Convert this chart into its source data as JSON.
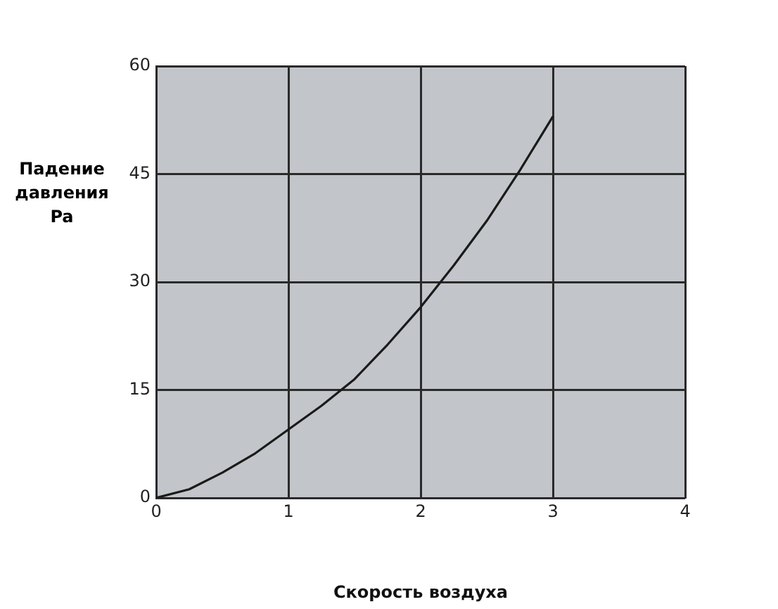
{
  "chart_data": {
    "type": "line",
    "xlabel": "Скорость воздуха",
    "ylabel": "Падение\nдавления\nPa",
    "x": [
      0,
      0.25,
      0.5,
      0.75,
      1,
      1.25,
      1.5,
      1.75,
      2,
      2.25,
      2.5,
      2.75,
      3
    ],
    "series": [
      {
        "color": "#1a1a1a",
        "values": [
          0,
          1.2,
          3.5,
          6.2,
          9.5,
          12.8,
          16.5,
          21.3,
          26.5,
          32.3,
          38.5,
          45.5,
          53
        ]
      }
    ],
    "xlim": [
      0,
      4
    ],
    "xticks": [
      0,
      1,
      2,
      3,
      4
    ],
    "ylim": [
      0,
      60
    ],
    "yticks": [
      0,
      15,
      30,
      45,
      60
    ],
    "grid": true,
    "legend": false,
    "marker": "none",
    "line_style": "solid"
  }
}
